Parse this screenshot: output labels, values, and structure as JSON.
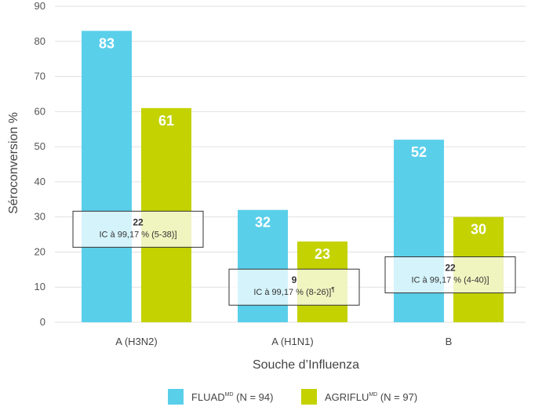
{
  "chart_data": {
    "type": "bar",
    "categories": [
      "A (H3N2)",
      "A (H1N1)",
      "B"
    ],
    "series": [
      {
        "name": "FLUAD",
        "sup": "MD",
        "n_label": "(N = 94)",
        "color": "#5ACFEA",
        "values": [
          83,
          32,
          52
        ]
      },
      {
        "name": "AGRIFLU",
        "sup": "MD",
        "n_label": "(N = 97)",
        "color": "#C3D200",
        "values": [
          61,
          23,
          30
        ]
      }
    ],
    "differences": [
      {
        "category": "A (H3N2)",
        "value": "22",
        "ci": "IC à 99,17 % (5-38)]",
        "level": 26.5
      },
      {
        "category": "A (H1N1)",
        "value": "9",
        "ci": "IC à 99,17 % (8-26)]",
        "ci_sup": "¶",
        "level": 10
      },
      {
        "category": "B",
        "value": "22",
        "ci": "IC à 99,17 % (4-40)]",
        "level": 13.5
      }
    ],
    "xlabel": "Souche d’Influenza",
    "ylabel": "Séroconversion %",
    "ylim": [
      0,
      90
    ],
    "yticks": [
      0,
      10,
      20,
      30,
      40,
      50,
      60,
      70,
      80,
      90
    ],
    "grid": true,
    "legend_position": "bottom"
  }
}
